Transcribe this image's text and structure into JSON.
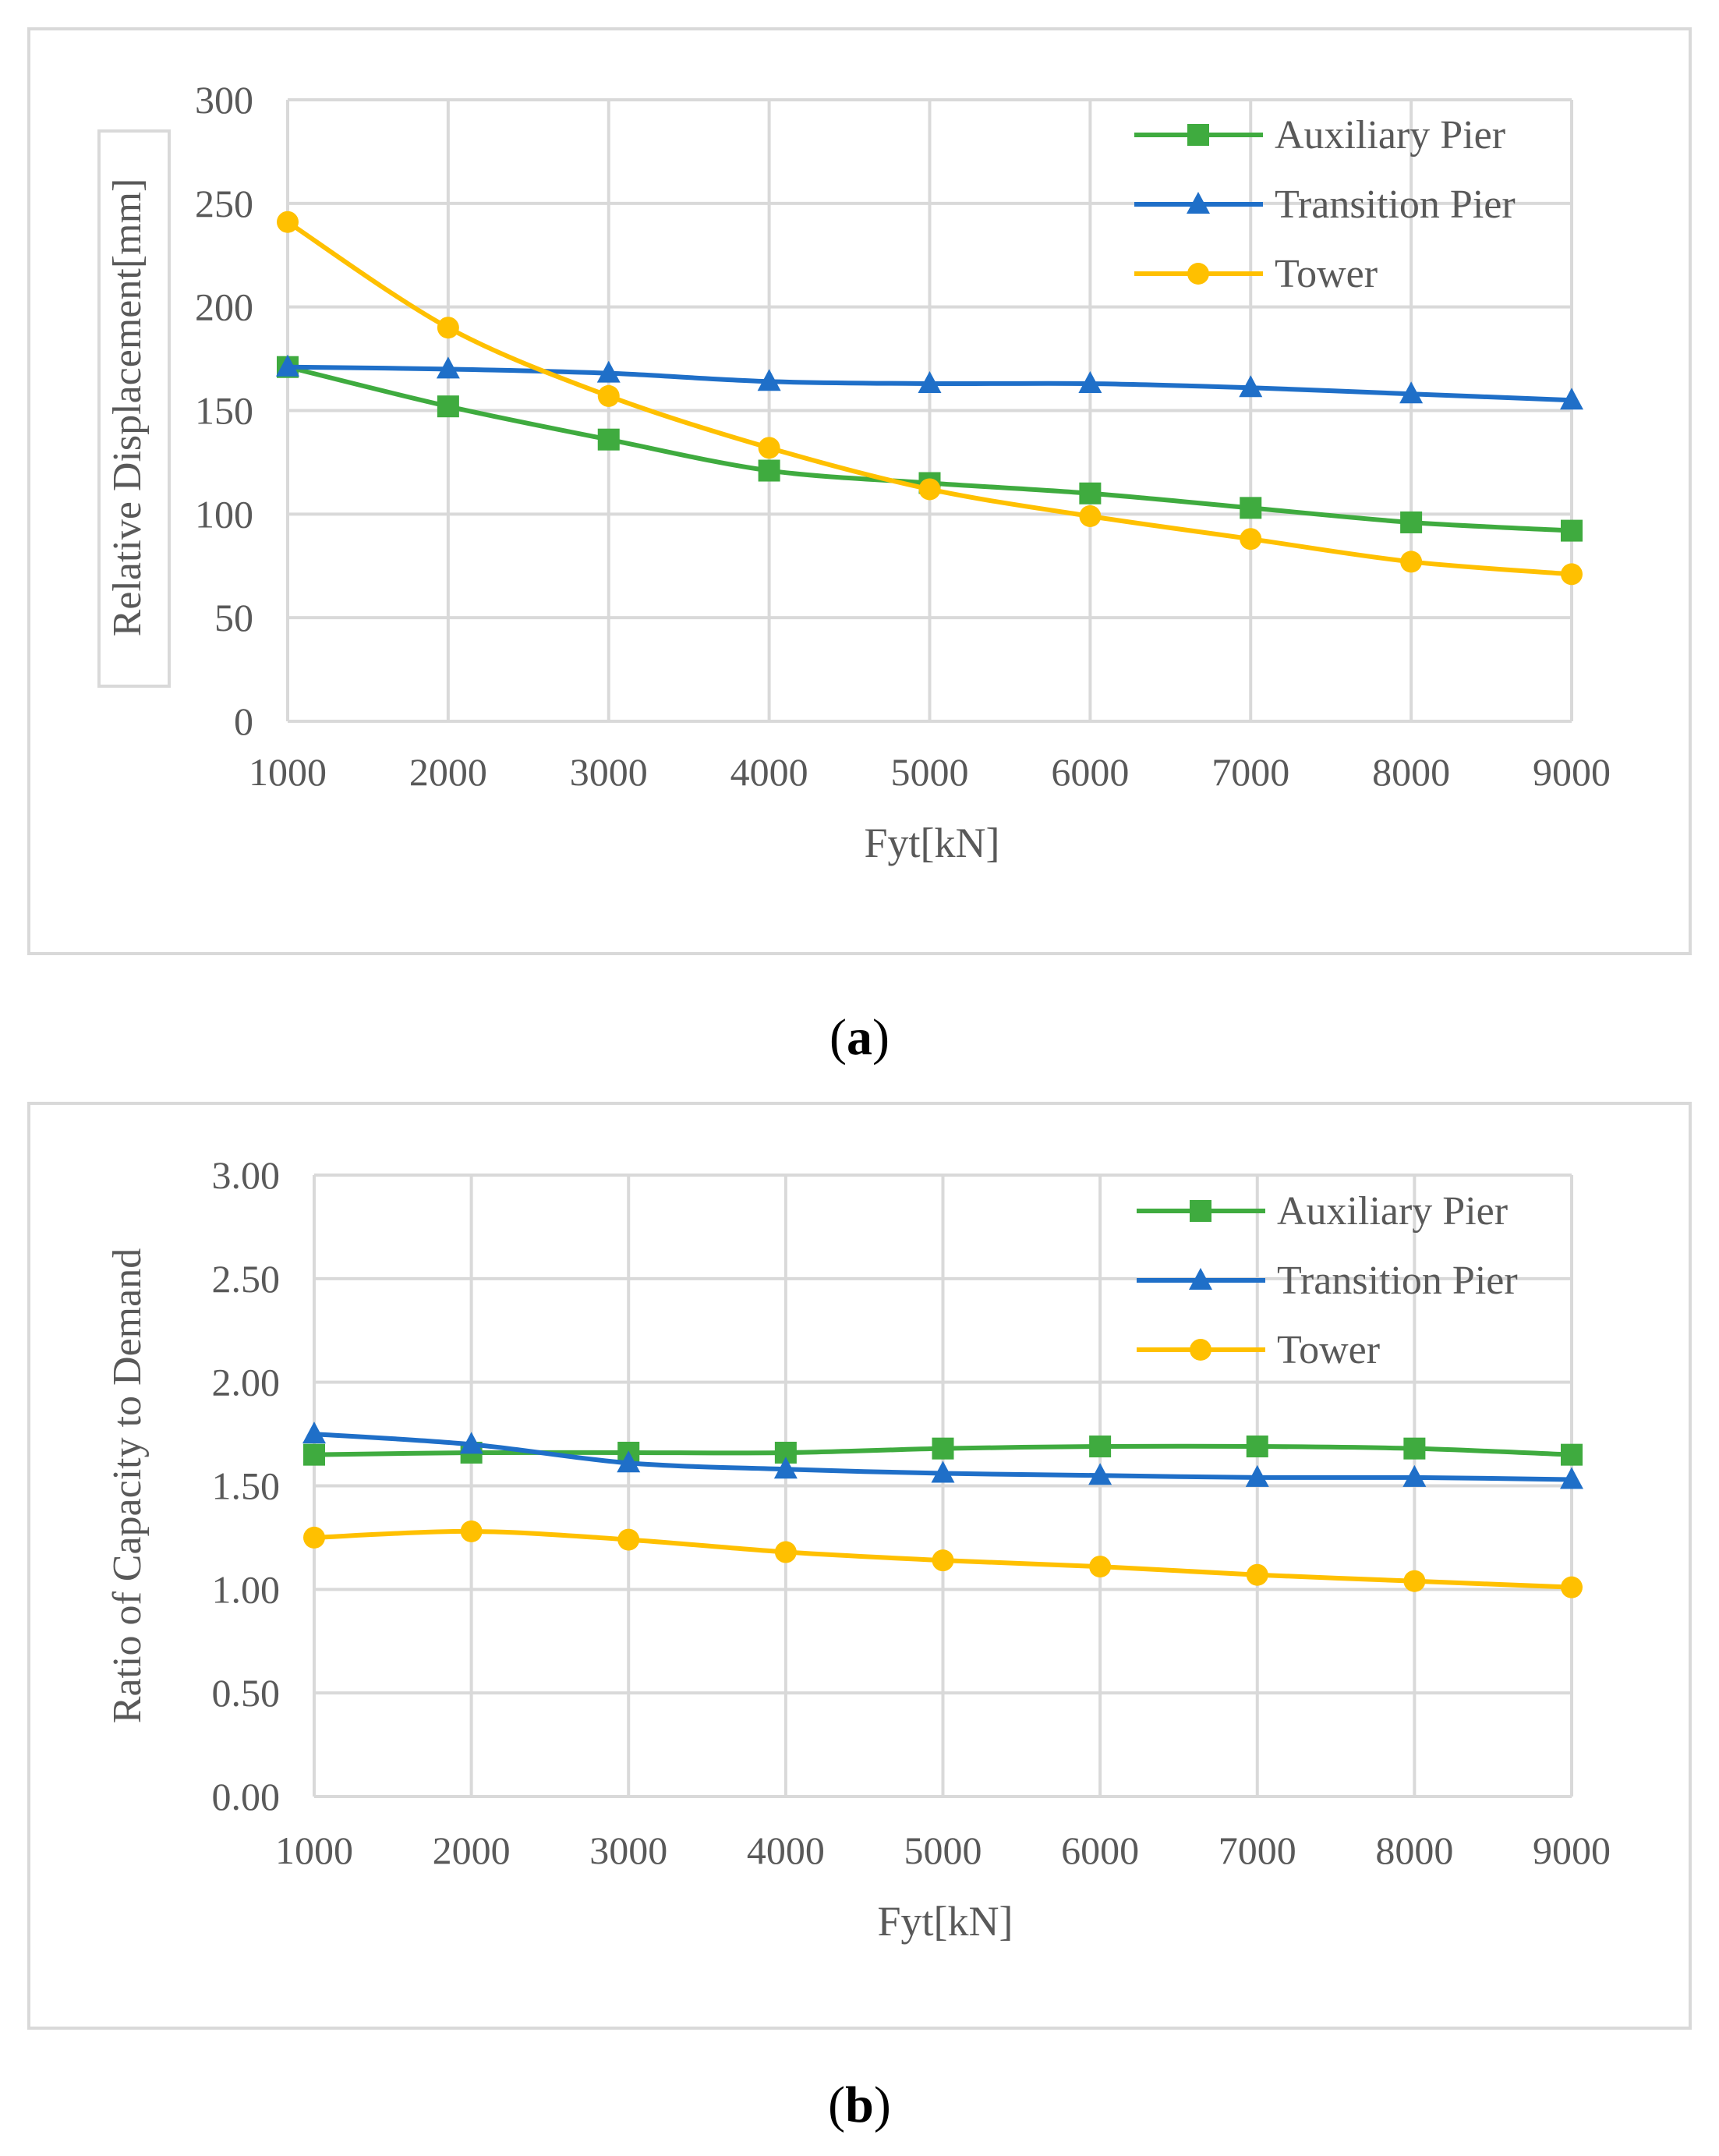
{
  "chart_data": [
    {
      "type": "line",
      "panel_label": "a",
      "title": "",
      "xlabel": "Fyt[kN]",
      "ylabel": "Relative Displacement[mm]",
      "x": [
        1000,
        2000,
        3000,
        4000,
        5000,
        6000,
        7000,
        8000,
        9000
      ],
      "x_ticks": [
        "1000",
        "2000",
        "3000",
        "4000",
        "5000",
        "6000",
        "7000",
        "8000",
        "9000"
      ],
      "y_ticks": [
        "0",
        "50",
        "100",
        "150",
        "200",
        "250",
        "300"
      ],
      "ylim": [
        0,
        300
      ],
      "grid": true,
      "legend_position": "top-right",
      "series": [
        {
          "name": "Auxiliary Pier",
          "color": "#3fab3f",
          "marker": "square",
          "values": [
            171,
            152,
            136,
            121,
            115,
            110,
            103,
            96,
            92
          ]
        },
        {
          "name": "Transition Pier",
          "color": "#1f6fc8",
          "marker": "triangle",
          "values": [
            171,
            170,
            168,
            164,
            163,
            163,
            161,
            158,
            155
          ]
        },
        {
          "name": "Tower",
          "color": "#ffc000",
          "marker": "circle",
          "values": [
            241,
            190,
            157,
            132,
            112,
            99,
            88,
            77,
            71
          ]
        }
      ]
    },
    {
      "type": "line",
      "panel_label": "b",
      "title": "",
      "xlabel": "Fyt[kN]",
      "ylabel": "Ratio of Capacity to Demand",
      "x": [
        1000,
        2000,
        3000,
        4000,
        5000,
        6000,
        7000,
        8000,
        9000
      ],
      "x_ticks": [
        "1000",
        "2000",
        "3000",
        "4000",
        "5000",
        "6000",
        "7000",
        "8000",
        "9000"
      ],
      "y_ticks": [
        "0.00",
        "0.50",
        "1.00",
        "1.50",
        "2.00",
        "2.50",
        "3.00"
      ],
      "ylim": [
        0,
        3
      ],
      "grid": true,
      "legend_position": "top-right",
      "series": [
        {
          "name": "Auxiliary Pier",
          "color": "#3fab3f",
          "marker": "square",
          "values": [
            1.65,
            1.66,
            1.66,
            1.66,
            1.68,
            1.69,
            1.69,
            1.68,
            1.65
          ]
        },
        {
          "name": "Transition Pier",
          "color": "#1f6fc8",
          "marker": "triangle",
          "values": [
            1.75,
            1.7,
            1.61,
            1.58,
            1.56,
            1.55,
            1.54,
            1.54,
            1.53
          ]
        },
        {
          "name": "Tower",
          "color": "#ffc000",
          "marker": "circle",
          "values": [
            1.25,
            1.28,
            1.24,
            1.18,
            1.14,
            1.11,
            1.07,
            1.04,
            1.01
          ]
        }
      ]
    }
  ],
  "captions": {
    "a": {
      "open": "(",
      "label": "a",
      "close": ")"
    },
    "b": {
      "open": "(",
      "label": "b",
      "close": ")"
    }
  }
}
